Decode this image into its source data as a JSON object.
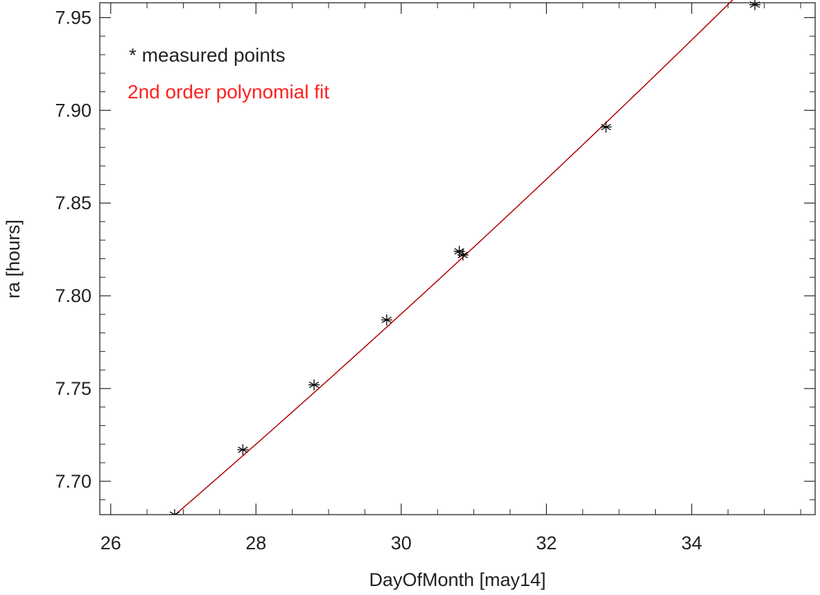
{
  "chart_data": {
    "type": "scatter",
    "title": "",
    "xlabel": "DayOfMonth [may14]",
    "ylabel": "ra [hours]",
    "xlim": [
      25.85,
      35.7
    ],
    "ylim": [
      7.682,
      7.958
    ],
    "x_ticks": [
      26,
      28,
      30,
      32,
      34
    ],
    "x_tick_labels": [
      "26",
      "28",
      "30",
      "32",
      "34"
    ],
    "x_minor_step": 0.5,
    "y_ticks": [
      7.7,
      7.75,
      7.8,
      7.85,
      7.9,
      7.95
    ],
    "y_tick_labels": [
      "7.70",
      "7.75",
      "7.80",
      "7.85",
      "7.90",
      "7.95"
    ],
    "y_minor_step": 0.01,
    "grid": false,
    "legend_position": "top-left",
    "legend": [
      {
        "label": "* measured points",
        "color": "#222222"
      },
      {
        "label": "2nd order polynomial fit",
        "color": "#ff2020"
      }
    ],
    "series": [
      {
        "kind": "points",
        "marker": "asterisk",
        "color": "#000000",
        "x": [
          26.88,
          27.82,
          28.8,
          29.8,
          30.8,
          30.85,
          32.82,
          34.87
        ],
        "y": [
          7.682,
          7.717,
          7.752,
          7.787,
          7.824,
          7.822,
          7.891,
          7.957
        ]
      },
      {
        "kind": "fit",
        "color": "#b00000",
        "x_range": [
          26.88,
          34.87
        ],
        "coefficients": [
          7.6817,
          0.03385,
          0.0003
        ]
      }
    ]
  }
}
